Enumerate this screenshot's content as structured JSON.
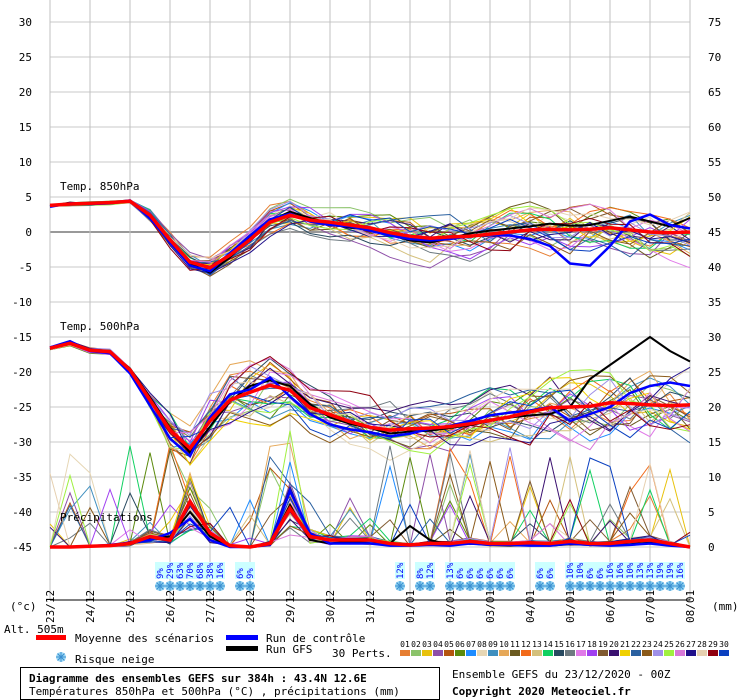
{
  "chart_data": {
    "type": "line",
    "title": "Diagramme des ensembles GEFS sur 384h : 43.4N 12.6E",
    "subtitle": "Températures 850hPa et 500hPa (°C) , précipitations (mm)",
    "run_info": "Ensemble GEFS du 23/12/2020 - 00Z",
    "copyright": "Copyright 2020 Meteociel.fr",
    "altitude": "Alt. 505m",
    "left_unit": "(°c)",
    "right_unit": "(mm)",
    "left_ticks": [
      "30",
      "25",
      "20",
      "15",
      "10",
      "5",
      "0",
      "-5",
      "-10",
      "-15",
      "-20",
      "-25",
      "-30",
      "-35",
      "-40",
      "-45"
    ],
    "right_ticks": [
      "75",
      "70",
      "65",
      "60",
      "55",
      "50",
      "45",
      "40",
      "35",
      "30",
      "25",
      "20",
      "15",
      "10",
      "5",
      "0"
    ],
    "ylim_left": [
      -45,
      30
    ],
    "ylim_right": [
      0,
      75
    ],
    "x_hours_range": [
      0,
      384
    ],
    "x_step_hours": 12,
    "date_labels": [
      "23/12",
      "24/12",
      "25/12",
      "26/12",
      "27/12",
      "28/12",
      "29/12",
      "30/12",
      "31/12",
      "01/01",
      "02/01",
      "03/01",
      "04/01",
      "05/01",
      "06/01",
      "07/01",
      "08/01"
    ],
    "section_labels": {
      "t850": "Temp. 850hPa",
      "t500": "Temp. 500hPa",
      "precip": "Précipitations"
    },
    "t850": {
      "mean": [
        3.8,
        4.0,
        4.1,
        4.2,
        4.4,
        2.4,
        -1.1,
        -4.3,
        -5.1,
        -3.3,
        -1.1,
        1.4,
        2.4,
        1.7,
        1.4,
        1.0,
        0.6,
        -0.1,
        -0.6,
        -0.9,
        -0.7,
        -0.6,
        -0.3,
        0,
        0.3,
        0.4,
        0.3,
        0.4,
        0.6,
        0.3,
        0,
        -0.1,
        0
      ],
      "control": [
        3.6,
        4.1,
        4.0,
        4.1,
        4.5,
        2.0,
        -1.5,
        -4.8,
        -5.6,
        -3.0,
        -0.5,
        1.8,
        2.6,
        1.5,
        1.0,
        0.8,
        0.2,
        -0.5,
        -1.0,
        -1.2,
        -1.0,
        -0.6,
        -0.4,
        -0.5,
        -1.0,
        -2.0,
        -4.5,
        -4.8,
        -2.0,
        1.5,
        2.5,
        1.0,
        0.5
      ],
      "gfs": [
        3.7,
        4.2,
        4.0,
        4.3,
        4.3,
        2.2,
        -1.4,
        -4.5,
        -5.8,
        -3.6,
        -0.8,
        1.6,
        2.9,
        2.0,
        1.2,
        0.6,
        0.4,
        -0.4,
        -1.2,
        -1.5,
        -0.9,
        -0.2,
        0.2,
        0.5,
        0.8,
        1.2,
        0.9,
        1.0,
        1.6,
        2.2,
        1.5,
        0.8,
        2.0
      ]
    },
    "t500": {
      "mean": [
        -16.6,
        -15.9,
        -16.9,
        -17.1,
        -19.7,
        -24,
        -28.3,
        -30.9,
        -27,
        -24,
        -22.9,
        -21.9,
        -22.6,
        -25.1,
        -26.1,
        -27.1,
        -27.9,
        -28.3,
        -28.1,
        -28,
        -27.8,
        -27.4,
        -26.9,
        -26.4,
        -25.7,
        -25.1,
        -25,
        -24.9,
        -24.4,
        -24.5,
        -24.7,
        -24.8,
        -24.7
      ],
      "control": [
        -16.5,
        -15.6,
        -17.0,
        -17.3,
        -20.2,
        -24.8,
        -29.5,
        -32.0,
        -26.5,
        -23.2,
        -22.5,
        -20.8,
        -23.5,
        -26.0,
        -27.5,
        -28.2,
        -28.6,
        -29.2,
        -28.8,
        -28.1,
        -27.7,
        -27.0,
        -26.2,
        -25.8,
        -25.5,
        -25.0,
        -27,
        -26,
        -25,
        -23,
        -22,
        -21.5,
        -22
      ],
      "gfs": [
        -16.7,
        -15.8,
        -16.8,
        -17.2,
        -19.5,
        -23.6,
        -28.0,
        -31.5,
        -27.8,
        -24.2,
        -22.0,
        -21.2,
        -22.0,
        -24.6,
        -26.5,
        -27.4,
        -28.0,
        -28.8,
        -28.5,
        -28.4,
        -28.0,
        -27.6,
        -27.0,
        -26.5,
        -26.2,
        -26,
        -25,
        -21,
        -19,
        -17,
        -15,
        -17,
        -18.5
      ]
    },
    "precip_mm": {
      "mean": [
        0,
        0,
        0.1,
        0.2,
        0.5,
        1.5,
        1,
        6.5,
        2,
        0.2,
        0,
        0.5,
        5.5,
        1.5,
        1,
        1,
        1,
        0.5,
        0.3,
        0.5,
        0.5,
        0.8,
        0.5,
        0.5,
        0.6,
        0.5,
        0.8,
        0.5,
        0.5,
        0.8,
        1,
        0.5,
        0
      ],
      "control": [
        0,
        0,
        0.1,
        0.3,
        0.6,
        1.0,
        2.0,
        4.0,
        1.0,
        0,
        0,
        0.3,
        8.0,
        2.0,
        0.5,
        0.5,
        0.5,
        0.2,
        0.2,
        0.3,
        0.2,
        0.5,
        0.3,
        0.3,
        0.2,
        0.2,
        0.5,
        0.3,
        0.2,
        0.3,
        0.5,
        0.2,
        0
      ],
      "gfs": [
        0,
        0,
        0.1,
        0.2,
        0.4,
        1.2,
        1.5,
        5.0,
        1.5,
        0,
        0,
        0.4,
        6.0,
        1.0,
        0.5,
        0.8,
        0.5,
        0.5,
        3.0,
        1.0,
        0.3,
        0.5,
        0.3,
        0.2,
        0.3,
        0.2,
        0.4,
        0.3,
        0.3,
        0.4,
        0.6,
        0.3,
        0
      ]
    },
    "snow_risk": [
      {
        "h": 66,
        "pct": "9%"
      },
      {
        "h": 72,
        "pct": "29%"
      },
      {
        "h": 78,
        "pct": "63%"
      },
      {
        "h": 84,
        "pct": "70%"
      },
      {
        "h": 90,
        "pct": "68%"
      },
      {
        "h": 96,
        "pct": "38%"
      },
      {
        "h": 102,
        "pct": "16%"
      },
      {
        "h": 114,
        "pct": "6%"
      },
      {
        "h": 120,
        "pct": "9%"
      },
      {
        "h": 210,
        "pct": "12%"
      },
      {
        "h": 222,
        "pct": "8%"
      },
      {
        "h": 228,
        "pct": "12%"
      },
      {
        "h": 240,
        "pct": "13%"
      },
      {
        "h": 246,
        "pct": "6%"
      },
      {
        "h": 252,
        "pct": "6%"
      },
      {
        "h": 258,
        "pct": "6%"
      },
      {
        "h": 264,
        "pct": "6%"
      },
      {
        "h": 270,
        "pct": "6%"
      },
      {
        "h": 276,
        "pct": "6%"
      },
      {
        "h": 294,
        "pct": "6%"
      },
      {
        "h": 300,
        "pct": "6%"
      },
      {
        "h": 312,
        "pct": "10%"
      },
      {
        "h": 318,
        "pct": "10%"
      },
      {
        "h": 324,
        "pct": "6%"
      },
      {
        "h": 330,
        "pct": "6%"
      },
      {
        "h": 336,
        "pct": "16%"
      },
      {
        "h": 342,
        "pct": "16%"
      },
      {
        "h": 348,
        "pct": "10%"
      },
      {
        "h": 354,
        "pct": "13%"
      },
      {
        "h": 360,
        "pct": "13%"
      },
      {
        "h": 366,
        "pct": "19%"
      },
      {
        "h": 372,
        "pct": "19%"
      },
      {
        "h": 378,
        "pct": "16%"
      }
    ],
    "legend": {
      "mean": {
        "label": "Moyenne des scénarios",
        "color": "#ff0000"
      },
      "control": {
        "label": "Run de contrôle",
        "color": "#0000ff"
      },
      "gfs": {
        "label": "Run GFS",
        "color": "#000000"
      },
      "snow": {
        "label": "Risque neige"
      },
      "perts_label": "30 Perts.",
      "perts": [
        {
          "id": "01",
          "color": "#e67e32"
        },
        {
          "id": "02",
          "color": "#8bc36a"
        },
        {
          "id": "03",
          "color": "#e8c20c"
        },
        {
          "id": "04",
          "color": "#8e4fa8"
        },
        {
          "id": "05",
          "color": "#b4540e"
        },
        {
          "id": "06",
          "color": "#5b8a0c"
        },
        {
          "id": "07",
          "color": "#1e8cff"
        },
        {
          "id": "08",
          "color": "#e6d6b4"
        },
        {
          "id": "09",
          "color": "#3f8fbf"
        },
        {
          "id": "10",
          "color": "#e6a858"
        },
        {
          "id": "11",
          "color": "#6b5a20"
        },
        {
          "id": "12",
          "color": "#f26a1a"
        },
        {
          "id": "13",
          "color": "#d4c07c"
        },
        {
          "id": "14",
          "color": "#10d060"
        },
        {
          "id": "15",
          "color": "#284a60"
        },
        {
          "id": "16",
          "color": "#6e7a80"
        },
        {
          "id": "17",
          "color": "#e07ae8"
        },
        {
          "id": "18",
          "color": "#a040f0"
        },
        {
          "id": "19",
          "color": "#805a30"
        },
        {
          "id": "20",
          "color": "#3a1070"
        },
        {
          "id": "21",
          "color": "#f0d000"
        },
        {
          "id": "22",
          "color": "#2a60a0"
        },
        {
          "id": "23",
          "color": "#8a5a1a"
        },
        {
          "id": "24",
          "color": "#a090e8"
        },
        {
          "id": "25",
          "color": "#a0f040"
        },
        {
          "id": "26",
          "color": "#d878d8"
        },
        {
          "id": "27",
          "color": "#20108a"
        },
        {
          "id": "28",
          "color": "#e6d0b0"
        },
        {
          "id": "29",
          "color": "#900010"
        },
        {
          "id": "30",
          "color": "#0a40c0"
        }
      ]
    }
  }
}
